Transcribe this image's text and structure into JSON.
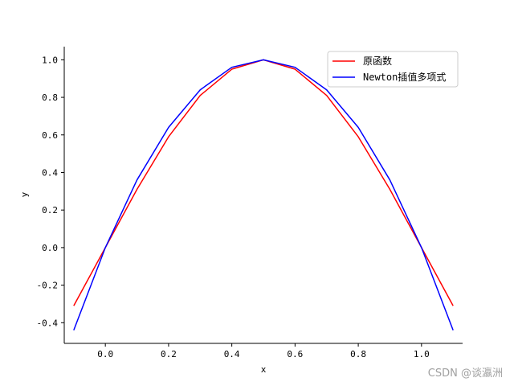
{
  "chart_data": {
    "type": "line",
    "title": "",
    "xlabel": "x",
    "ylabel": "y",
    "xlim": [
      -0.13,
      1.13
    ],
    "ylim": [
      -0.51,
      1.07
    ],
    "xticks": [
      0.0,
      0.2,
      0.4,
      0.6,
      0.8,
      1.0
    ],
    "xtick_labels": [
      "0.0",
      "0.2",
      "0.4",
      "0.6",
      "0.8",
      "1.0"
    ],
    "yticks": [
      -0.4,
      -0.2,
      0.0,
      0.2,
      0.4,
      0.6,
      0.8,
      1.0
    ],
    "ytick_labels": [
      "-0.4",
      "-0.2",
      "0.0",
      "0.2",
      "0.4",
      "0.6",
      "0.8",
      "1.0"
    ],
    "grid": false,
    "legend_position": "top-right",
    "series": [
      {
        "name": "原函数",
        "color": "#ff0000",
        "x": [
          -0.1,
          0.0,
          0.1,
          0.2,
          0.3,
          0.4,
          0.5,
          0.6,
          0.7,
          0.8,
          0.9,
          1.0,
          1.1
        ],
        "y": [
          -0.31,
          0.0,
          0.31,
          0.59,
          0.81,
          0.95,
          1.0,
          0.95,
          0.81,
          0.59,
          0.31,
          0.0,
          -0.31
        ]
      },
      {
        "name": "Newton插值多项式",
        "color": "#0000ff",
        "x": [
          -0.1,
          0.0,
          0.1,
          0.2,
          0.3,
          0.4,
          0.5,
          0.6,
          0.7,
          0.8,
          0.9,
          1.0,
          1.1
        ],
        "y": [
          -0.44,
          0.0,
          0.36,
          0.64,
          0.84,
          0.96,
          1.0,
          0.96,
          0.84,
          0.64,
          0.36,
          0.0,
          -0.44
        ]
      }
    ]
  },
  "watermark": "CSDN @谈瀛洲"
}
